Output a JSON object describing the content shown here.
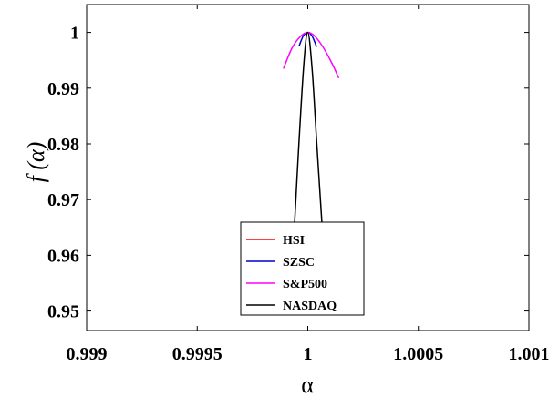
{
  "chart_data": {
    "type": "line",
    "title": "",
    "xlabel": "α",
    "ylabel": "f (α)",
    "xlim": [
      0.999,
      1.001
    ],
    "ylim": [
      0.9465,
      1.005
    ],
    "xticks": [
      0.999,
      0.9995,
      1,
      1.0005,
      1.001
    ],
    "xtick_labels": [
      "0.999",
      "0.9995",
      "1",
      "1.0005",
      "1.001"
    ],
    "yticks": [
      0.95,
      0.96,
      0.97,
      0.98,
      0.99,
      1
    ],
    "ytick_labels": [
      "0.95",
      "0.96",
      "0.97",
      "0.98",
      "0.99",
      "1"
    ],
    "grid": false,
    "legend_position": "bottom-center",
    "series": [
      {
        "name": "HSI",
        "color": "#ff0000",
        "x": [
          0.99999,
          1.0,
          1.00001
        ],
        "y": [
          0.99998,
          1.0,
          0.99998
        ]
      },
      {
        "name": "SZSC",
        "color": "#0000cc",
        "x": [
          0.99996,
          0.99998,
          1.0,
          1.00002,
          1.00004
        ],
        "y": [
          0.9975,
          0.9994,
          1.0,
          0.9993,
          0.9974
        ]
      },
      {
        "name": "S&P500",
        "color": "#ff00ff",
        "x": [
          0.99989,
          0.99993,
          0.99997,
          1.0,
          1.00003,
          1.00007,
          1.00011,
          1.00014
        ],
        "y": [
          0.9935,
          0.9973,
          0.9994,
          1.0,
          0.9994,
          0.9973,
          0.9944,
          0.9918
        ]
      },
      {
        "name": "NASDAQ",
        "color": "#000000",
        "x": [
          0.99992,
          0.99995,
          0.99998,
          1.0,
          1.00002,
          1.00004,
          1.00007
        ],
        "y": [
          0.95,
          0.973,
          0.9932,
          1.0,
          0.9932,
          0.9805,
          0.962
        ]
      }
    ]
  }
}
